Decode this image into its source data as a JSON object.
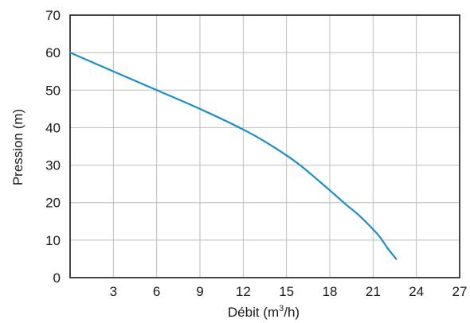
{
  "chart_data": {
    "type": "line",
    "xlabel_main": "Débit (m",
    "xlabel_sup": "3",
    "xlabel_end": "/h)",
    "ylabel": "Pression (m)",
    "xlim": [
      0,
      27
    ],
    "ylim": [
      0,
      70
    ],
    "x_ticks": [
      3,
      6,
      9,
      12,
      15,
      18,
      21,
      24,
      27
    ],
    "y_ticks": [
      0,
      10,
      20,
      30,
      40,
      50,
      60,
      70
    ],
    "x_tick_labels": [
      "3",
      "6",
      "9",
      "12",
      "15",
      "18",
      "21",
      "24",
      "27"
    ],
    "y_tick_labels": [
      "0",
      "10",
      "20",
      "30",
      "40",
      "50",
      "60",
      "70"
    ],
    "grid": true,
    "line_color": "#1b8ec9",
    "grid_color": "#bdbdbd",
    "series": [
      {
        "x": [
          0,
          3,
          6,
          9,
          12,
          13.5,
          15,
          16,
          17,
          18,
          19,
          20,
          21,
          21.5,
          22,
          22.6
        ],
        "y": [
          60,
          55,
          50,
          45,
          39.5,
          36.3,
          32.6,
          29.8,
          26.6,
          23.3,
          19.9,
          16.7,
          12.9,
          10.7,
          7.9,
          5
        ]
      }
    ]
  }
}
